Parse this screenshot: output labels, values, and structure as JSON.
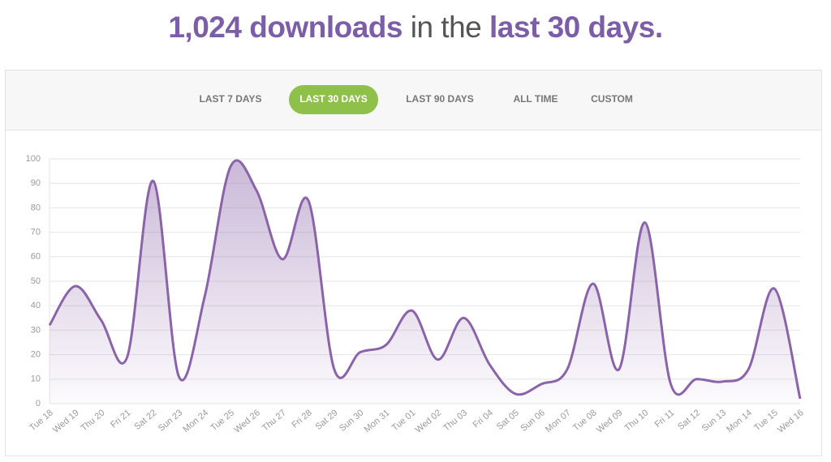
{
  "header": {
    "title_parts": [
      "1,024 downloads",
      "in the",
      "last 30 days."
    ]
  },
  "tabs": {
    "items": [
      "LAST 7 DAYS",
      "LAST 30 DAYS",
      "LAST 90 DAYS",
      "ALL TIME",
      "CUSTOM"
    ],
    "active": "LAST 30 DAYS"
  },
  "chart_data": {
    "type": "area",
    "color": "#8a63a8",
    "grid": true,
    "categories": [
      "Tue 18",
      "Wed 19",
      "Thu 20",
      "Fri 21",
      "Sat 22",
      "Sun 23",
      "Mon 24",
      "Tue 25",
      "Wed 26",
      "Thu 27",
      "Fri 28",
      "Sat 29",
      "Sun 30",
      "Mon 31",
      "Tue 01",
      "Wed 02",
      "Thu 03",
      "Fri 04",
      "Sat 05",
      "Sun 06",
      "Mon 07",
      "Tue 08",
      "Wed 09",
      "Thu 10",
      "Fri 11",
      "Sat 12",
      "Sun 13",
      "Mon 14",
      "Tue 15",
      "Wed 16"
    ],
    "values": [
      32,
      48,
      34,
      19,
      91,
      11,
      44,
      97,
      87,
      59,
      83,
      14,
      21,
      24,
      38,
      18,
      35,
      16,
      4,
      8,
      14,
      49,
      14,
      74,
      8,
      10,
      9,
      14,
      47,
      2
    ],
    "ylim": [
      0,
      100
    ],
    "yticks": [
      0,
      10,
      20,
      30,
      40,
      50,
      60,
      70,
      80,
      90,
      100
    ]
  }
}
